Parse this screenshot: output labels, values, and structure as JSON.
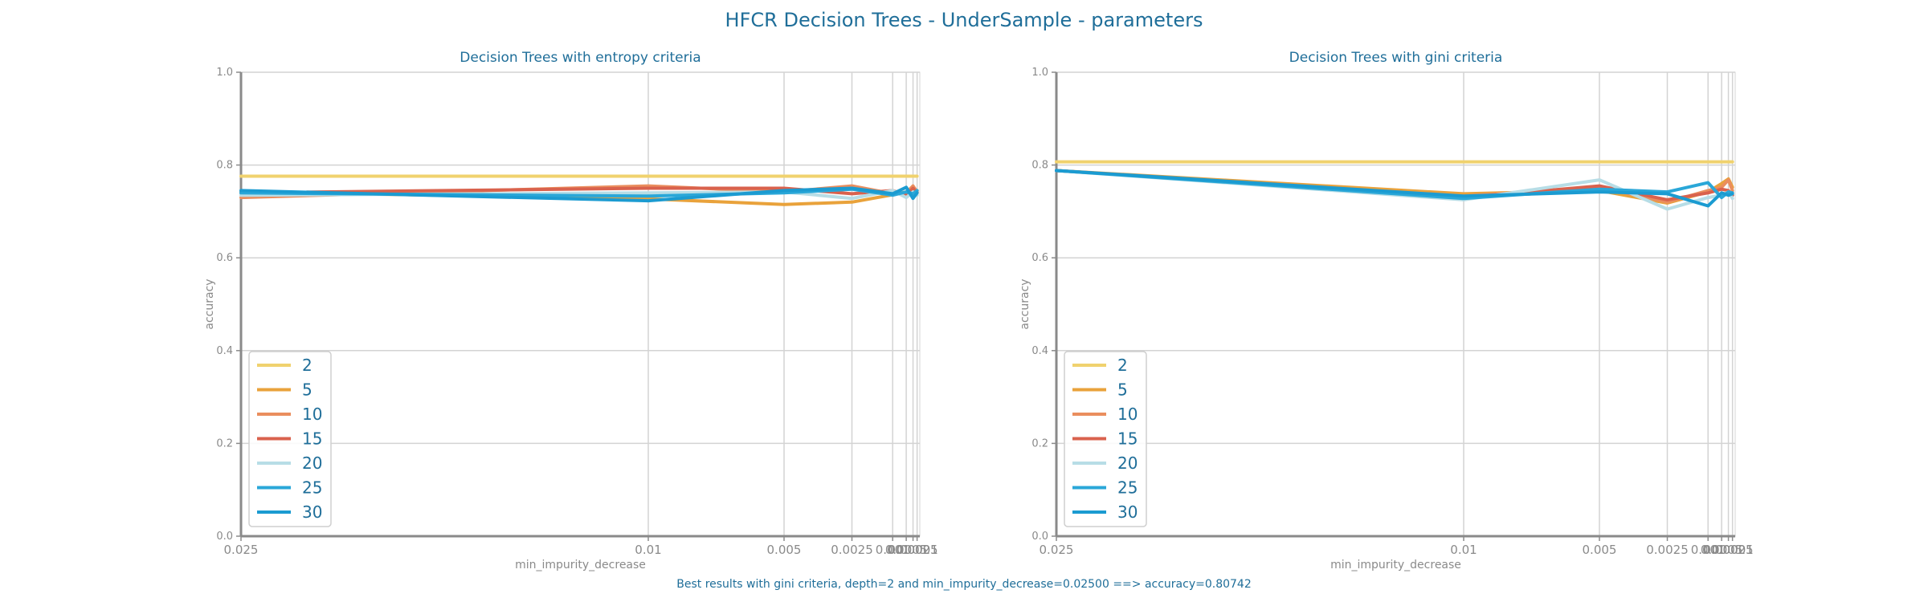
{
  "figure": {
    "title": "HFCR Decision Trees - UnderSample - parameters",
    "footer": "Best results with gini criteria, depth=2 and min_impurity_decrease=0.02500 ==> accuracy=0.80742"
  },
  "chart_data": [
    {
      "type": "line",
      "title": "Decision Trees with entropy criteria",
      "xlabel": "min_impurity_decrease",
      "ylabel": "accuracy",
      "ylim": [
        0,
        1
      ],
      "y_ticks": [
        "0.0",
        "0.2",
        "0.4",
        "0.6",
        "0.8",
        "1.0"
      ],
      "x": [
        0.025,
        0.01,
        0.005,
        0.0025,
        0.001,
        0.0005,
        0.00025,
        0.0001
      ],
      "x_ticks": [
        "0.025",
        "0.01",
        "0.005",
        "0.0025",
        "0.001",
        "0.0005",
        "0.00025",
        "0.0001"
      ],
      "grid": true,
      "legend": "lower-left",
      "series": [
        {
          "name": "2",
          "color": "#f0d26e",
          "values": [
            0.776,
            0.776,
            0.776,
            0.776,
            0.776,
            0.776,
            0.776,
            0.776
          ]
        },
        {
          "name": "5",
          "color": "#e9a23b",
          "values": [
            0.742,
            0.727,
            0.715,
            0.72,
            0.736,
            0.742,
            0.748,
            0.745
          ]
        },
        {
          "name": "10",
          "color": "#ea8e5e",
          "values": [
            0.73,
            0.755,
            0.742,
            0.755,
            0.738,
            0.74,
            0.755,
            0.742
          ]
        },
        {
          "name": "15",
          "color": "#d9624d",
          "values": [
            0.74,
            0.75,
            0.75,
            0.738,
            0.745,
            0.735,
            0.75,
            0.74
          ]
        },
        {
          "name": "20",
          "color": "#b7dde6",
          "values": [
            0.735,
            0.74,
            0.742,
            0.728,
            0.745,
            0.73,
            0.742,
            0.735
          ]
        },
        {
          "name": "25",
          "color": "#2aa7d8",
          "values": [
            0.74,
            0.733,
            0.74,
            0.748,
            0.735,
            0.742,
            0.738,
            0.745
          ]
        },
        {
          "name": "30",
          "color": "#1b9bd1",
          "values": [
            0.745,
            0.723,
            0.745,
            0.75,
            0.738,
            0.752,
            0.728,
            0.74
          ]
        }
      ]
    },
    {
      "type": "line",
      "title": "Decision Trees with gini criteria",
      "xlabel": "min_impurity_decrease",
      "ylabel": "accuracy",
      "ylim": [
        0,
        1
      ],
      "y_ticks": [
        "0.0",
        "0.2",
        "0.4",
        "0.6",
        "0.8",
        "1.0"
      ],
      "x": [
        0.025,
        0.01,
        0.005,
        0.0025,
        0.001,
        0.0005,
        0.00025,
        0.0001
      ],
      "x_ticks": [
        "0.025",
        "0.01",
        "0.005",
        "0.0025",
        "0.001",
        "0.0005",
        "0.00025",
        "0.0001"
      ],
      "grid": true,
      "legend": "lower-left",
      "series": [
        {
          "name": "2",
          "color": "#f0d26e",
          "values": [
            0.807,
            0.807,
            0.807,
            0.807,
            0.807,
            0.807,
            0.807,
            0.807
          ]
        },
        {
          "name": "5",
          "color": "#e9a23b",
          "values": [
            0.788,
            0.738,
            0.745,
            0.718,
            0.742,
            0.76,
            0.77,
            0.752
          ]
        },
        {
          "name": "10",
          "color": "#ea8e5e",
          "values": [
            0.788,
            0.733,
            0.752,
            0.72,
            0.745,
            0.752,
            0.768,
            0.745
          ]
        },
        {
          "name": "15",
          "color": "#d9624d",
          "values": [
            0.788,
            0.73,
            0.755,
            0.725,
            0.74,
            0.748,
            0.745,
            0.735
          ]
        },
        {
          "name": "20",
          "color": "#b7dde6",
          "values": [
            0.788,
            0.725,
            0.768,
            0.705,
            0.73,
            0.735,
            0.742,
            0.728
          ]
        },
        {
          "name": "25",
          "color": "#2aa7d8",
          "values": [
            0.788,
            0.728,
            0.748,
            0.742,
            0.762,
            0.73,
            0.742,
            0.74
          ]
        },
        {
          "name": "30",
          "color": "#1b9bd1",
          "values": [
            0.788,
            0.733,
            0.742,
            0.738,
            0.712,
            0.74,
            0.735,
            0.738
          ]
        }
      ]
    }
  ]
}
